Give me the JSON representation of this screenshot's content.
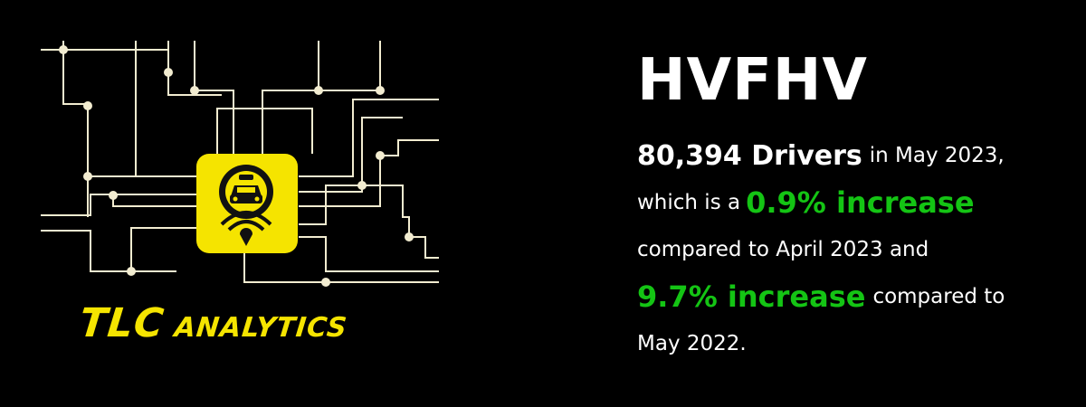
{
  "logo": {
    "brand_main": "TLC",
    "brand_sub": "analytics",
    "colors": {
      "accent": "#f5e400",
      "lines": "#f2ecd0",
      "bg": "#000000"
    },
    "icon": "taxi-location-icon"
  },
  "title": "HVFHV",
  "stats": {
    "drivers_count": "80,394 Drivers",
    "period_text": "in May 2023,",
    "line2_prefix": "which is a",
    "increase_month": "0.9% increase",
    "line3_text": "compared to April 2023 and",
    "increase_year": "9.7% increase",
    "line4_suffix": "compared to",
    "line5_text": "May 2022.",
    "highlight_color": "#14c414"
  }
}
